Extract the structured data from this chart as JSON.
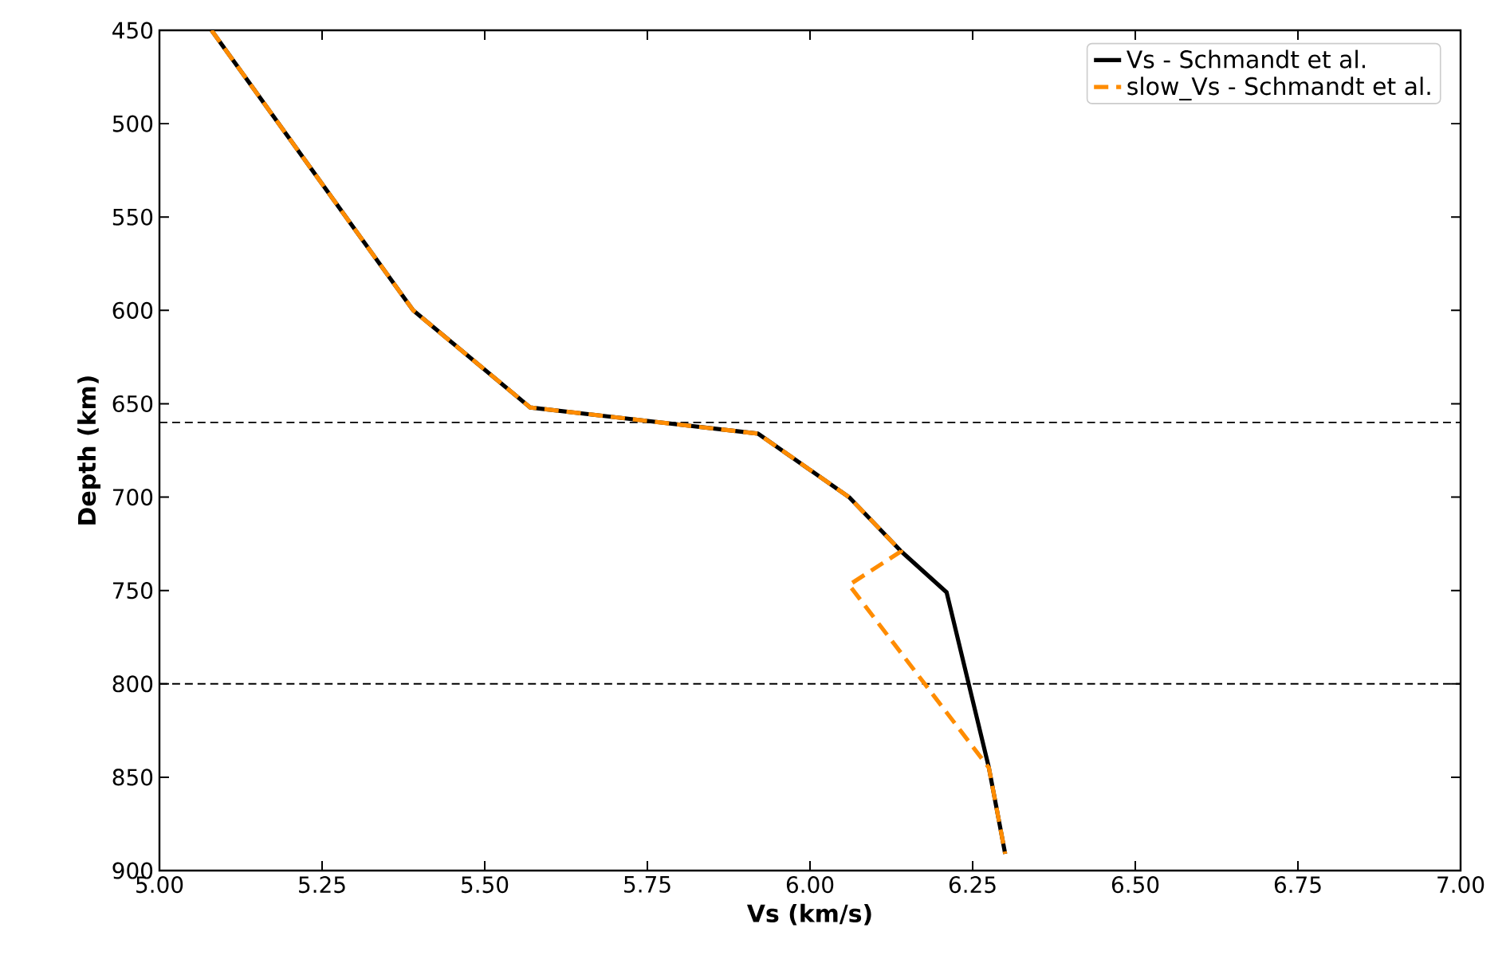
{
  "chart_data": {
    "type": "line",
    "xlabel": "Vs (km/s)",
    "ylabel": "Depth (km)",
    "xlim": [
      5.0,
      7.0
    ],
    "ylim": [
      900,
      450
    ],
    "xticks": [
      {
        "value": 5.0,
        "label": "5.00"
      },
      5.25,
      {
        "value": 5.5,
        "label": "5.50"
      },
      5.75,
      {
        "value": 6.0,
        "label": "6.00"
      },
      6.25,
      {
        "value": 6.5,
        "label": "6.50"
      },
      6.75,
      {
        "value": 7.0,
        "label": "7.00"
      }
    ],
    "yticks": [
      450,
      500,
      550,
      600,
      650,
      700,
      750,
      800,
      850,
      900
    ],
    "legend": "top right",
    "grid": false,
    "ref_lines": [
      {
        "axis": "y",
        "value": 660,
        "color": "#000000",
        "line_style": "dashed"
      },
      {
        "axis": "y",
        "value": 800,
        "color": "#000000",
        "line_style": "dashed"
      }
    ],
    "series": [
      {
        "name": "Vs - Schmandt et al.",
        "color": "#000000",
        "line_style": "solid",
        "x": [
          5.08,
          5.39,
          5.57,
          5.92,
          6.06,
          6.14,
          6.21,
          6.275,
          6.3
        ],
        "values": [
          450,
          600,
          652,
          666,
          700,
          729,
          751,
          845,
          891
        ]
      },
      {
        "name": "slow_Vs - Schmandt et al.",
        "color": "#ff8c00",
        "line_style": "dashed",
        "x": [
          5.08,
          5.39,
          5.57,
          5.92,
          6.06,
          6.14,
          6.06,
          6.275,
          6.3
        ],
        "values": [
          450,
          600,
          652,
          666,
          700,
          729,
          747,
          845,
          891
        ]
      }
    ]
  }
}
